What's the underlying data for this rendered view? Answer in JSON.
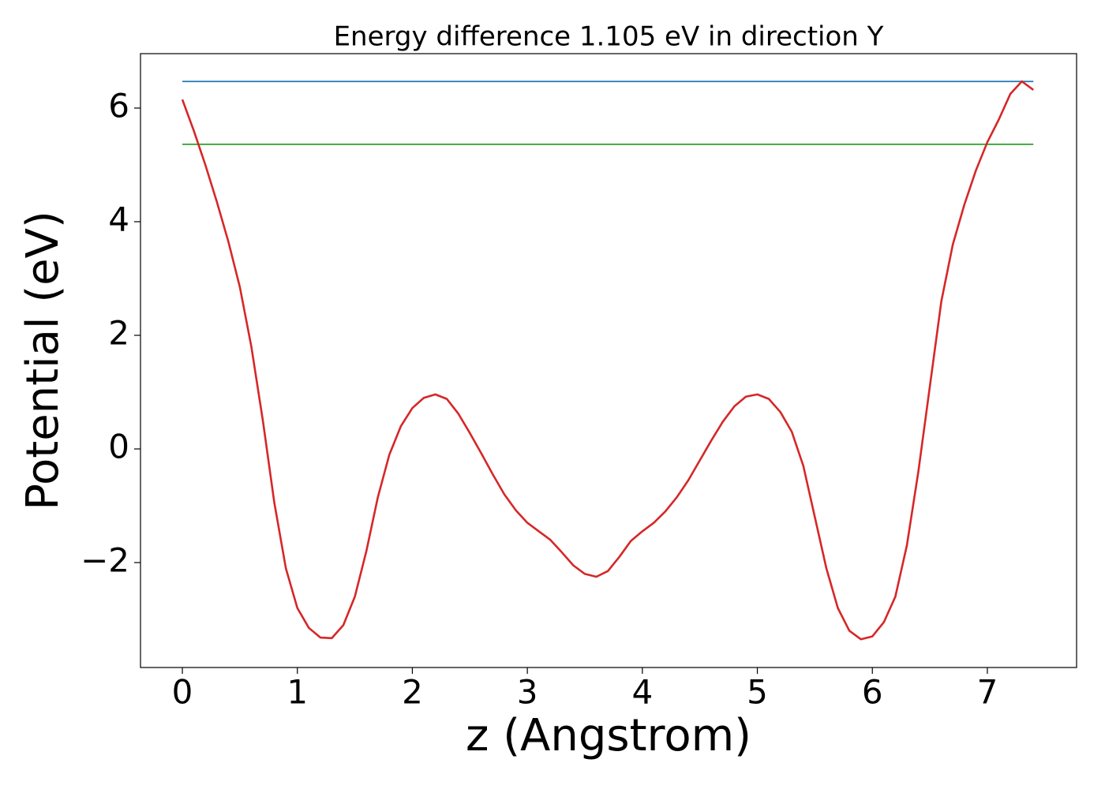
{
  "chart_data": {
    "type": "line",
    "title": "Energy difference 1.105 eV in direction Y",
    "xlabel": "z (Angstrom)",
    "ylabel": "Potential (eV)",
    "xlim": [
      -0.364,
      7.776
    ],
    "ylim": [
      -3.847,
      6.958
    ],
    "xticks": [
      0,
      1,
      2,
      3,
      4,
      5,
      6,
      7
    ],
    "yticks": [
      {
        "value": -2,
        "label": "−2"
      },
      0,
      2,
      4,
      6
    ],
    "series": [
      {
        "color": "#1f77b4",
        "x": [
          0,
          7.4
        ],
        "values": [
          6.468,
          6.468
        ]
      },
      {
        "color": "#2ca02c",
        "x": [
          0,
          7.4
        ],
        "values": [
          5.363,
          5.363
        ]
      },
      {
        "color": "#d62728",
        "x": [
          0,
          0.1,
          0.2,
          0.3,
          0.4,
          0.5,
          0.6,
          0.7,
          0.8,
          0.9,
          1.0,
          1.1,
          1.2,
          1.3,
          1.4,
          1.5,
          1.6,
          1.7,
          1.8,
          1.9,
          2.0,
          2.1,
          2.2,
          2.3,
          2.4,
          2.5,
          2.6,
          2.7,
          2.8,
          2.9,
          3.0,
          3.1,
          3.2,
          3.3,
          3.4,
          3.5,
          3.6,
          3.7,
          3.8,
          3.9,
          4.0,
          4.1,
          4.2,
          4.3,
          4.4,
          4.5,
          4.6,
          4.7,
          4.8,
          4.9,
          5.0,
          5.1,
          5.2,
          5.3,
          5.4,
          5.5,
          5.6,
          5.7,
          5.8,
          5.9,
          6.0,
          6.1,
          6.2,
          6.3,
          6.4,
          6.5,
          6.6,
          6.7,
          6.8,
          6.9,
          7.0,
          7.1,
          7.2,
          7.3,
          7.4
        ],
        "values": [
          6.15,
          5.6,
          5.0,
          4.35,
          3.65,
          2.85,
          1.8,
          0.5,
          -0.95,
          -2.1,
          -2.8,
          -3.15,
          -3.32,
          -3.33,
          -3.1,
          -2.6,
          -1.8,
          -0.85,
          -0.1,
          0.4,
          0.72,
          0.9,
          0.96,
          0.88,
          0.62,
          0.28,
          -0.08,
          -0.45,
          -0.8,
          -1.08,
          -1.3,
          -1.45,
          -1.6,
          -1.82,
          -2.05,
          -2.2,
          -2.25,
          -2.15,
          -1.9,
          -1.62,
          -1.45,
          -1.3,
          -1.1,
          -0.85,
          -0.55,
          -0.2,
          0.15,
          0.48,
          0.75,
          0.92,
          0.96,
          0.88,
          0.65,
          0.3,
          -0.3,
          -1.2,
          -2.1,
          -2.8,
          -3.2,
          -3.35,
          -3.3,
          -3.05,
          -2.6,
          -1.7,
          -0.4,
          1.1,
          2.6,
          3.6,
          4.3,
          4.9,
          5.4,
          5.8,
          6.25,
          6.47,
          6.32
        ]
      }
    ]
  }
}
